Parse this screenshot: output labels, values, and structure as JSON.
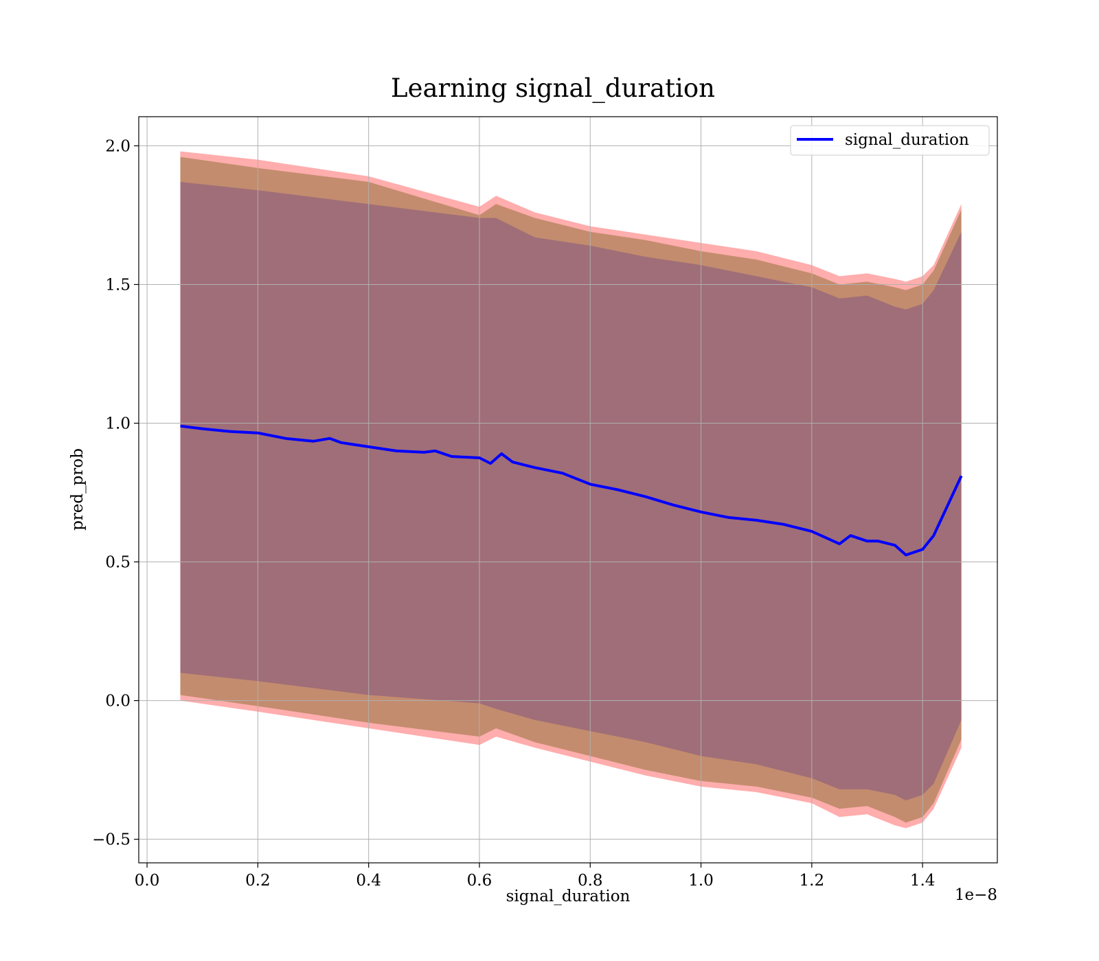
{
  "chart_data": {
    "type": "line",
    "title": "Learning signal_duration",
    "xlabel": "signal_duration",
    "ylabel": "pred_prob",
    "x_offset_label": "1e−8",
    "xlim": [
      -0.015,
      1.535
    ],
    "ylim": [
      -0.585,
      2.105
    ],
    "xticks": [
      0.0,
      0.2,
      0.4,
      0.6,
      0.8,
      1.0,
      1.2,
      1.4
    ],
    "xtick_labels": [
      "0.0",
      "0.2",
      "0.4",
      "0.6",
      "0.8",
      "1.0",
      "1.2",
      "1.4"
    ],
    "yticks": [
      -0.5,
      0.0,
      0.5,
      1.0,
      1.5,
      2.0
    ],
    "ytick_labels": [
      "−0.5",
      "0.0",
      "0.5",
      "1.0",
      "1.5",
      "2.0"
    ],
    "grid": true,
    "legend_position": "top-right",
    "colors": {
      "line": "#0000ff",
      "outer_band": "#ff9999",
      "middle_band": "#c08a6a",
      "inner_band": "#a06e78",
      "grid": "#b0b0b0"
    },
    "series": [
      {
        "name": "signal_duration",
        "x": [
          0.06,
          0.1,
          0.15,
          0.2,
          0.25,
          0.3,
          0.33,
          0.35,
          0.4,
          0.45,
          0.5,
          0.52,
          0.55,
          0.6,
          0.62,
          0.64,
          0.66,
          0.7,
          0.75,
          0.8,
          0.85,
          0.9,
          0.95,
          1.0,
          1.05,
          1.1,
          1.15,
          1.2,
          1.25,
          1.27,
          1.3,
          1.32,
          1.35,
          1.37,
          1.4,
          1.42,
          1.47
        ],
        "y": [
          0.99,
          0.98,
          0.97,
          0.965,
          0.945,
          0.935,
          0.945,
          0.93,
          0.915,
          0.9,
          0.895,
          0.9,
          0.88,
          0.875,
          0.855,
          0.89,
          0.86,
          0.84,
          0.82,
          0.78,
          0.76,
          0.735,
          0.705,
          0.68,
          0.66,
          0.65,
          0.635,
          0.61,
          0.565,
          0.595,
          0.575,
          0.575,
          0.56,
          0.525,
          0.545,
          0.595,
          0.81
        ]
      }
    ],
    "bands": [
      {
        "role": "outer",
        "x": [
          0.06,
          0.2,
          0.4,
          0.6,
          0.63,
          0.7,
          0.8,
          0.9,
          1.0,
          1.1,
          1.2,
          1.25,
          1.3,
          1.35,
          1.37,
          1.4,
          1.42,
          1.47
        ],
        "upper": [
          1.98,
          1.95,
          1.89,
          1.78,
          1.82,
          1.76,
          1.71,
          1.68,
          1.65,
          1.62,
          1.57,
          1.53,
          1.54,
          1.52,
          1.51,
          1.53,
          1.57,
          1.79
        ],
        "lower": [
          0.0,
          -0.04,
          -0.1,
          -0.16,
          -0.13,
          -0.17,
          -0.22,
          -0.27,
          -0.31,
          -0.33,
          -0.37,
          -0.42,
          -0.41,
          -0.45,
          -0.46,
          -0.44,
          -0.39,
          -0.17
        ]
      },
      {
        "role": "middle",
        "x": [
          0.06,
          0.2,
          0.4,
          0.6,
          0.63,
          0.7,
          0.8,
          0.9,
          1.0,
          1.1,
          1.2,
          1.25,
          1.3,
          1.35,
          1.37,
          1.4,
          1.42,
          1.47
        ],
        "upper": [
          1.96,
          1.92,
          1.87,
          1.75,
          1.79,
          1.74,
          1.69,
          1.66,
          1.62,
          1.59,
          1.54,
          1.5,
          1.51,
          1.49,
          1.48,
          1.5,
          1.55,
          1.77
        ],
        "lower": [
          0.02,
          -0.02,
          -0.08,
          -0.13,
          -0.1,
          -0.15,
          -0.2,
          -0.25,
          -0.29,
          -0.31,
          -0.35,
          -0.39,
          -0.38,
          -0.42,
          -0.44,
          -0.42,
          -0.37,
          -0.14
        ]
      },
      {
        "role": "inner",
        "x": [
          0.06,
          0.2,
          0.4,
          0.6,
          0.63,
          0.7,
          0.8,
          0.9,
          1.0,
          1.1,
          1.2,
          1.25,
          1.3,
          1.35,
          1.37,
          1.4,
          1.42,
          1.47
        ],
        "upper": [
          1.87,
          1.84,
          1.79,
          1.74,
          1.74,
          1.67,
          1.64,
          1.6,
          1.57,
          1.53,
          1.49,
          1.45,
          1.46,
          1.42,
          1.41,
          1.43,
          1.48,
          1.69
        ],
        "lower": [
          0.1,
          0.07,
          0.02,
          -0.01,
          -0.03,
          -0.07,
          -0.11,
          -0.15,
          -0.2,
          -0.23,
          -0.28,
          -0.32,
          -0.32,
          -0.34,
          -0.36,
          -0.34,
          -0.3,
          -0.07
        ]
      }
    ]
  }
}
